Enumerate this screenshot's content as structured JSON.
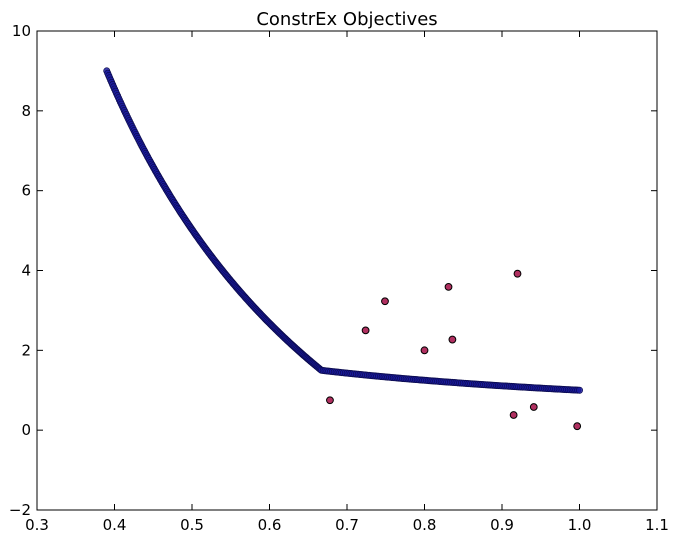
{
  "chart_data": {
    "type": "scatter",
    "title": "ConstrEx Objectives",
    "xlabel": "",
    "ylabel": "",
    "xlim": [
      0.3,
      1.1
    ],
    "ylim": [
      -2,
      10
    ],
    "grid": false,
    "x_ticks": [
      "0.3",
      "0.4",
      "0.5",
      "0.6",
      "0.7",
      "0.8",
      "0.9",
      "1.0",
      "1.1"
    ],
    "y_ticks": [
      "−2",
      "0",
      "2",
      "4",
      "6",
      "8",
      "10"
    ],
    "x_tick_values": [
      0.3,
      0.4,
      0.5,
      0.6,
      0.7,
      0.8,
      0.9,
      1.0,
      1.1
    ],
    "y_tick_values": [
      -2,
      0,
      2,
      4,
      6,
      8,
      10
    ],
    "series": [
      {
        "color": "#1a1a9c",
        "edge_color": "#0a0a4a",
        "front_segment_1": {
          "x_range": [
            0.39,
            0.667
          ],
          "f": "(1 + f2) / f1 with f2 at bound",
          "y_at_ends": [
            9.0,
            1.5
          ]
        },
        "front_segment_2": {
          "x_range": [
            0.667,
            1.0
          ],
          "y_at_ends": [
            1.5,
            1.0
          ]
        }
      },
      {
        "color": "#b03060",
        "edge_color": "#000000",
        "points": [
          {
            "x": 0.678,
            "y": 0.75
          },
          {
            "x": 0.724,
            "y": 2.5
          },
          {
            "x": 0.749,
            "y": 3.23
          },
          {
            "x": 0.8,
            "y": 2.0
          },
          {
            "x": 0.831,
            "y": 3.59
          },
          {
            "x": 0.836,
            "y": 2.27
          },
          {
            "x": 0.915,
            "y": 0.38
          },
          {
            "x": 0.92,
            "y": 3.92
          },
          {
            "x": 0.941,
            "y": 0.58
          },
          {
            "x": 0.997,
            "y": 0.1
          }
        ]
      }
    ]
  }
}
